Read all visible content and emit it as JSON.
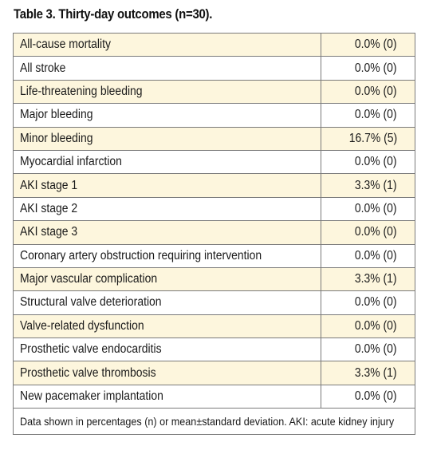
{
  "title": "Table 3. Thirty-day outcomes (n=30).",
  "rows": [
    {
      "label": "All-cause mortality",
      "value": "0.0% (0)"
    },
    {
      "label": "All stroke",
      "value": "0.0% (0)"
    },
    {
      "label": "Life-threatening bleeding",
      "value": "0.0% (0)"
    },
    {
      "label": "Major bleeding",
      "value": "0.0% (0)"
    },
    {
      "label": "Minor bleeding",
      "value": "16.7% (5)"
    },
    {
      "label": "Myocardial infarction",
      "value": "0.0% (0)"
    },
    {
      "label": "AKI stage 1",
      "value": "3.3% (1)"
    },
    {
      "label": "AKI stage 2",
      "value": "0.0% (0)"
    },
    {
      "label": "AKI stage 3",
      "value": "0.0% (0)"
    },
    {
      "label": "Coronary artery obstruction requiring intervention",
      "value": "0.0% (0)"
    },
    {
      "label": "Major vascular complication",
      "value": "3.3% (1)"
    },
    {
      "label": "Structural valve deterioration",
      "value": "0.0% (0)"
    },
    {
      "label": "Valve-related dysfunction",
      "value": "0.0% (0)"
    },
    {
      "label": "Prosthetic valve endocarditis",
      "value": "0.0% (0)"
    },
    {
      "label": "Prosthetic valve thrombosis",
      "value": "3.3% (1)"
    },
    {
      "label": "New pacemaker implantation",
      "value": "0.0% (0)"
    }
  ],
  "footnote": "Data shown in percentages (n) or mean±standard deviation. AKI: acute kidney injury",
  "colors": {
    "shaded_row": "#fdf6dd",
    "plain_row": "#ffffff",
    "border": "#7a7a7a"
  }
}
